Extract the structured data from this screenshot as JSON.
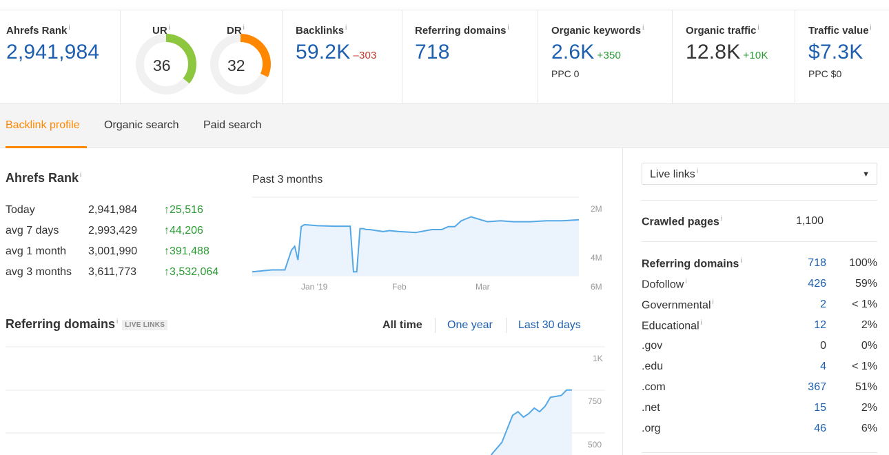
{
  "metrics": {
    "ahrefs_rank": {
      "label": "Ahrefs Rank",
      "value": "2,941,984"
    },
    "ur": {
      "label": "UR",
      "value": "36",
      "level": 36,
      "color": "#8dc63f"
    },
    "dr": {
      "label": "DR",
      "value": "32",
      "level": 32,
      "color": "#ff8800"
    },
    "backlinks": {
      "label": "Backlinks",
      "value": "59.2K",
      "delta": "–303"
    },
    "referring_domains": {
      "label": "Referring domains",
      "value": "718"
    },
    "organic_keywords": {
      "label": "Organic keywords",
      "value": "2.6K",
      "delta": "+350",
      "sub": "PPC 0"
    },
    "organic_traffic": {
      "label": "Organic traffic",
      "value": "12.8K",
      "delta": "+10K"
    },
    "traffic_value": {
      "label": "Traffic value",
      "value": "$7.3K",
      "sub": "PPC $0"
    },
    "info_glyph": "i"
  },
  "tabs": [
    {
      "label": "Backlink profile",
      "active": true
    },
    {
      "label": "Organic search"
    },
    {
      "label": "Paid search"
    }
  ],
  "rank_section": {
    "title": "Ahrefs Rank",
    "chart_caption": "Past 3 months",
    "rows": [
      {
        "label": "Today",
        "value": "2,941,984",
        "delta": "25,516"
      },
      {
        "label": "avg 7 days",
        "value": "2,993,429",
        "delta": "44,206"
      },
      {
        "label": "avg 1 month",
        "value": "3,001,990",
        "delta": "391,488"
      },
      {
        "label": "avg 3 months",
        "value": "3,611,773",
        "delta": "3,532,064"
      }
    ]
  },
  "refdomains_section": {
    "title": "Referring domains",
    "badge": "LIVE LINKS",
    "periods": [
      {
        "label": "All time",
        "active": true
      },
      {
        "label": "One year"
      },
      {
        "label": "Last 30 days"
      }
    ]
  },
  "sidebar": {
    "select_value": "Live links",
    "crawled_pages": {
      "label": "Crawled pages",
      "value": "1,100"
    },
    "rows": [
      {
        "label": "Referring domains",
        "value": "718",
        "pct": "100%",
        "bold": true,
        "info": true
      },
      {
        "label": "Dofollow",
        "value": "426",
        "pct": "59%",
        "info": true
      },
      {
        "label": "Governmental",
        "value": "2",
        "pct": "< 1%",
        "info": true
      },
      {
        "label": "Educational",
        "value": "12",
        "pct": "2%",
        "info": true
      },
      {
        "label": ".gov",
        "value": "0",
        "pct": "0%",
        "plain": true
      },
      {
        "label": ".edu",
        "value": "4",
        "pct": "< 1%"
      },
      {
        "label": ".com",
        "value": "367",
        "pct": "51%"
      },
      {
        "label": ".net",
        "value": "15",
        "pct": "2%"
      },
      {
        "label": ".org",
        "value": "46",
        "pct": "6%"
      }
    ]
  },
  "chart_data": [
    {
      "type": "area",
      "title": "Past 3 months",
      "x_tick_labels": [
        "Jan '19",
        "Feb",
        "Mar"
      ],
      "y_tick_labels": [
        "2M",
        "4M",
        "6M"
      ],
      "y_reversed": true,
      "ylim": [
        2000000,
        6000000
      ],
      "x": [
        0,
        0.06,
        0.1,
        0.12,
        0.13,
        0.14,
        0.15,
        0.16,
        0.2,
        0.25,
        0.3,
        0.31,
        0.32,
        0.33,
        0.34,
        0.35,
        0.36,
        0.4,
        0.42,
        0.45,
        0.5,
        0.55,
        0.58,
        0.6,
        0.62,
        0.64,
        0.67,
        0.72,
        0.76,
        0.8,
        0.85,
        0.9,
        0.95,
        1
      ],
      "values": [
        5800000,
        5700000,
        5700000,
        4700000,
        4500000,
        5200000,
        3500000,
        3400000,
        3450000,
        3480000,
        3480000,
        5800000,
        5800000,
        3600000,
        3600000,
        3650000,
        3650000,
        3750000,
        3700000,
        3750000,
        3800000,
        3650000,
        3650000,
        3500000,
        3500000,
        3200000,
        3000000,
        3250000,
        3200000,
        3250000,
        3250000,
        3200000,
        3200000,
        3150000
      ]
    },
    {
      "type": "line",
      "title": "Referring domains",
      "y_tick_labels": [
        "1K",
        "750",
        "500"
      ],
      "ylim": [
        400,
        1000
      ],
      "x": [
        0,
        0.9,
        0.92,
        0.94,
        0.95,
        0.96,
        0.97,
        0.98,
        0.99,
        1.0,
        1.01,
        1.03,
        1.04,
        1.05
      ],
      "values": [
        400,
        400,
        470,
        620,
        640,
        610,
        630,
        660,
        640,
        670,
        720,
        730,
        760,
        760
      ]
    }
  ]
}
